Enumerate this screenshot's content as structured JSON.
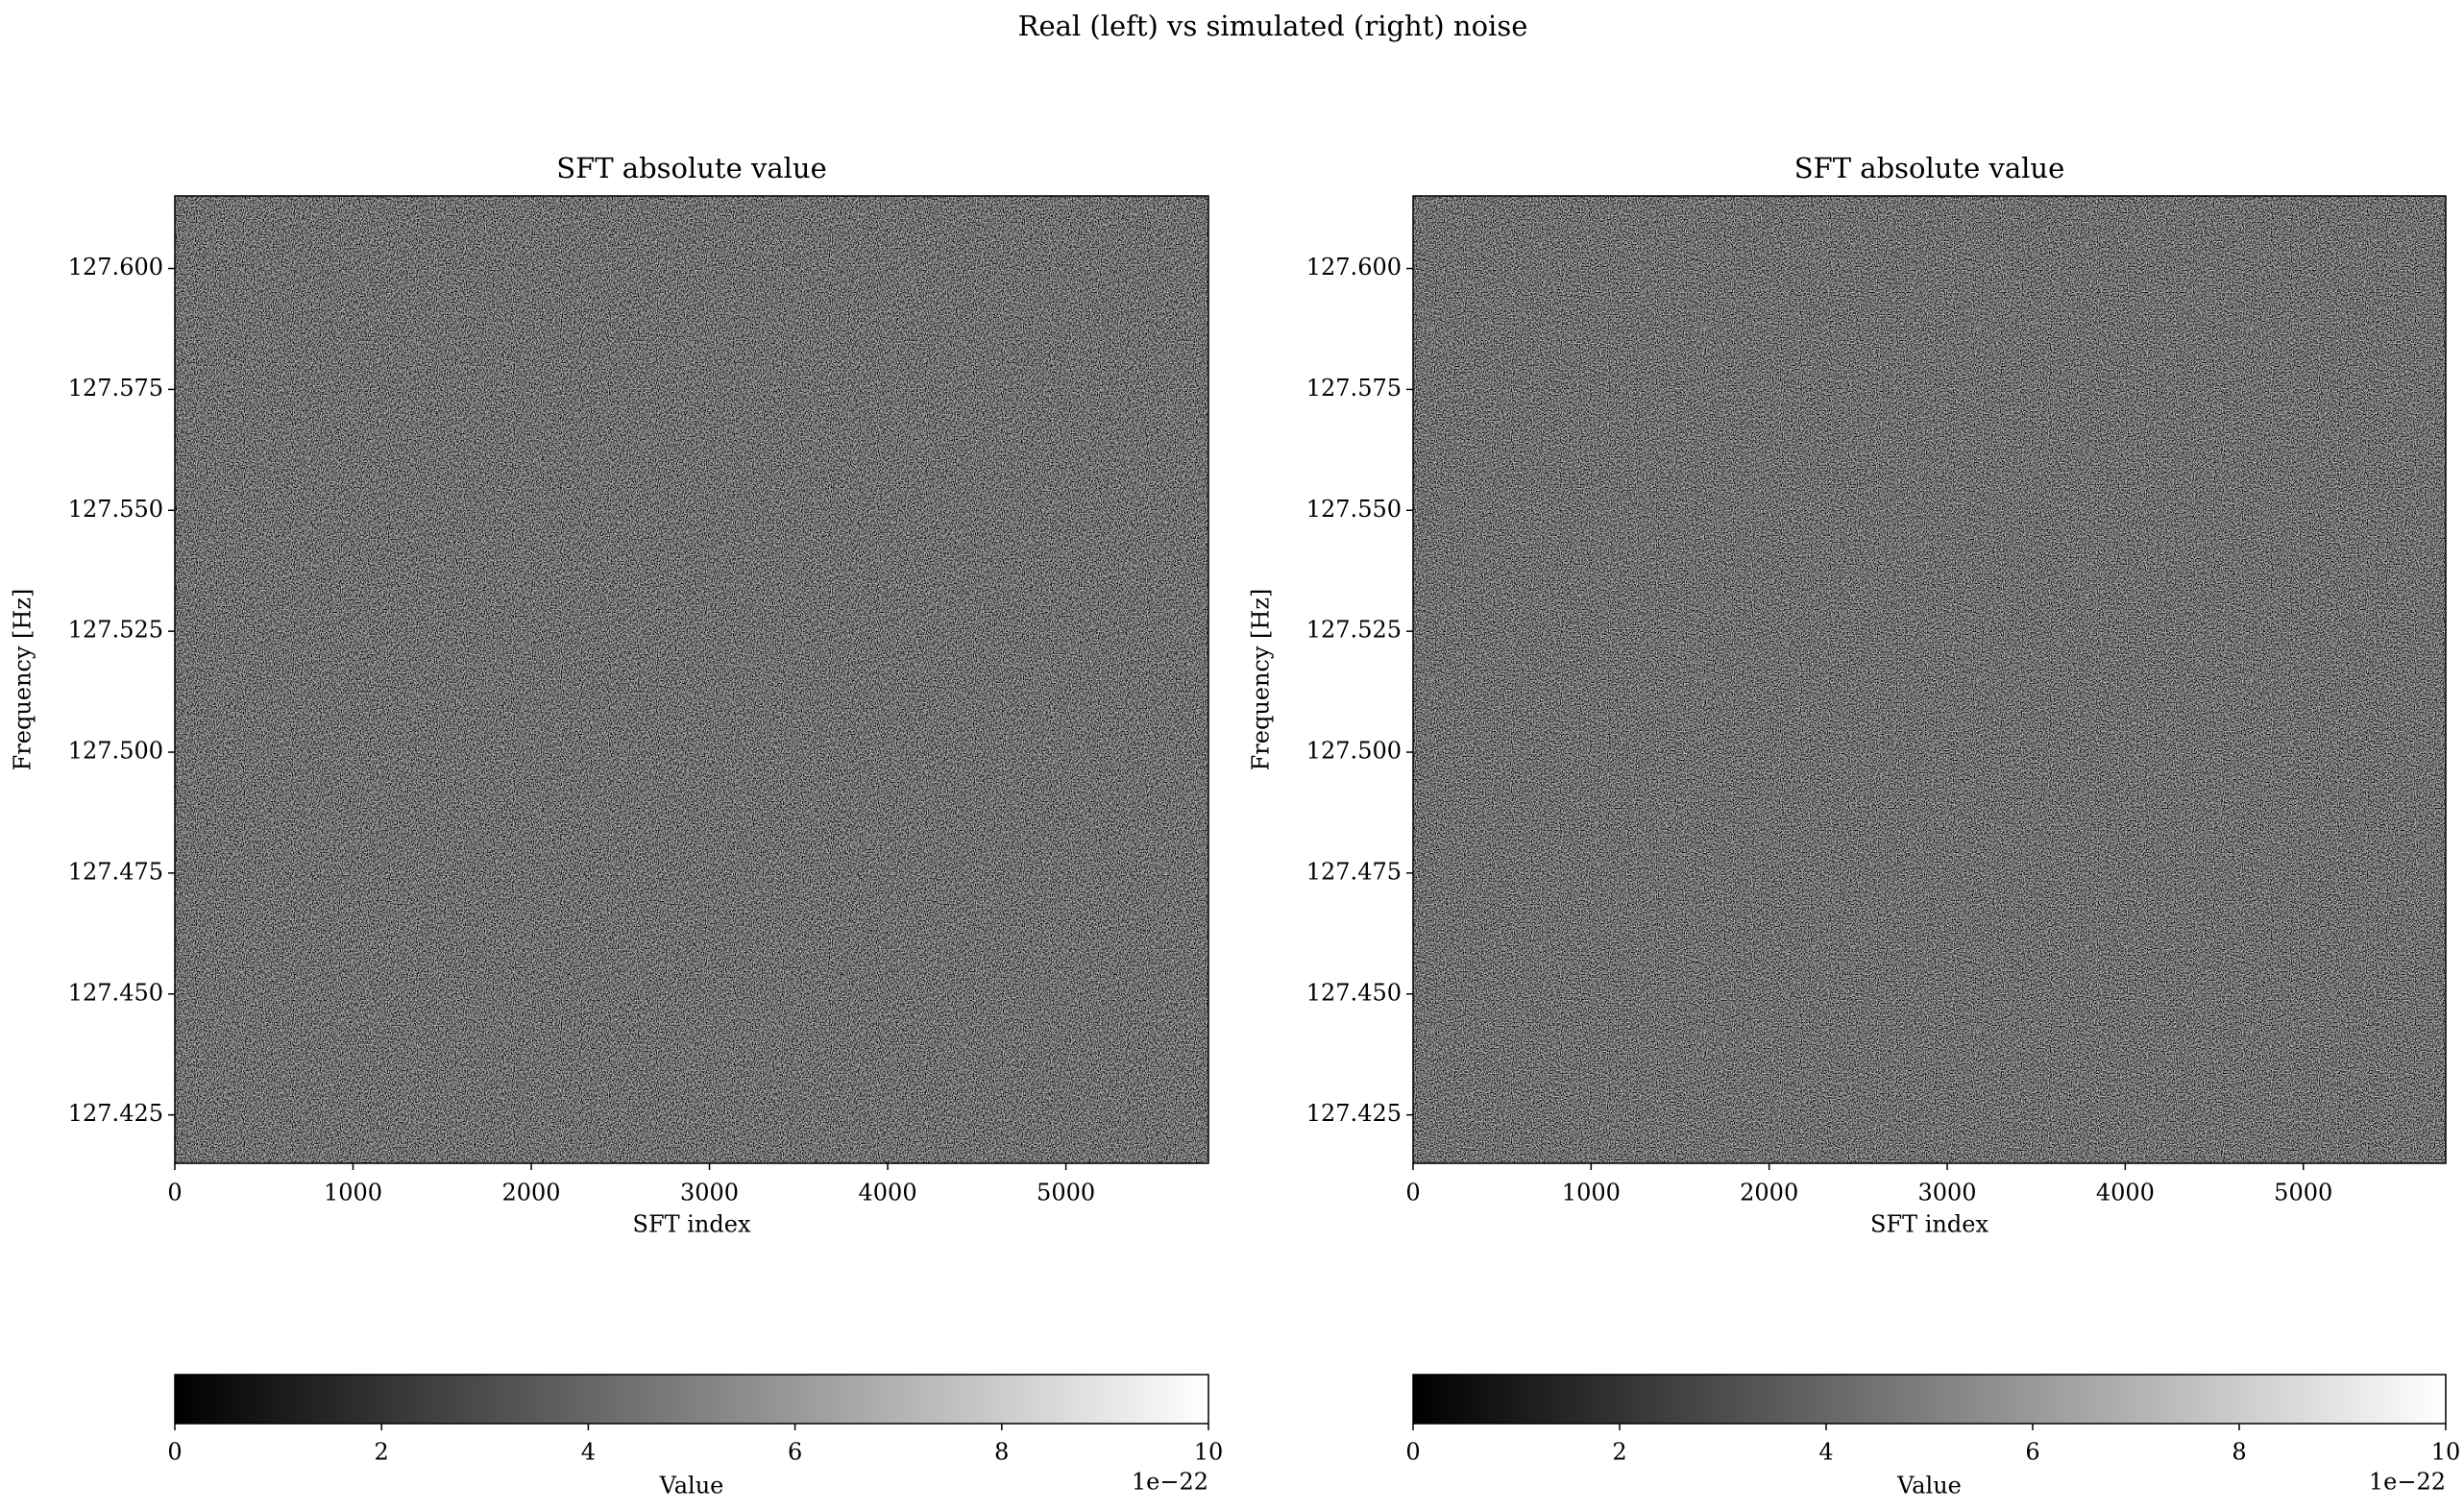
{
  "title": "Real (left) vs simulated (right) noise",
  "chart_data": [
    {
      "type": "heatmap",
      "title": "SFT absolute value",
      "xlabel": "SFT index",
      "ylabel": "Frequency [Hz]",
      "colormap": "gray",
      "xlim": [
        0,
        5800
      ],
      "xticks": [
        0,
        1000,
        2000,
        3000,
        4000,
        5000
      ],
      "ylim": [
        127.415,
        127.615
      ],
      "yticks": [
        127.425,
        {
          "value": 127.45,
          "label": "127.450"
        },
        127.475,
        {
          "value": 127.5,
          "label": "127.500"
        },
        127.525,
        {
          "value": 127.55,
          "label": "127.550"
        },
        127.575,
        {
          "value": 127.6,
          "label": "127.600"
        }
      ],
      "colorbar": {
        "label": "Value",
        "lim": [
          0,
          1e-21
        ],
        "offset_label": "1e−22",
        "ticks": [
          0,
          {
            "value": 2e-22,
            "label": "2"
          },
          {
            "value": 4e-22,
            "label": "4"
          },
          {
            "value": 6e-22,
            "label": "6"
          },
          {
            "value": 8e-22,
            "label": "8"
          },
          {
            "value": 1e-21,
            "label": "10"
          }
        ]
      }
    },
    {
      "type": "heatmap",
      "title": "SFT absolute value",
      "xlabel": "SFT index",
      "ylabel": "Frequency [Hz]",
      "colormap": "gray",
      "xlim": [
        0,
        5800
      ],
      "xticks": [
        0,
        1000,
        2000,
        3000,
        4000,
        5000
      ],
      "ylim": [
        127.415,
        127.615
      ],
      "yticks": [
        127.425,
        {
          "value": 127.45,
          "label": "127.450"
        },
        127.475,
        {
          "value": 127.5,
          "label": "127.500"
        },
        127.525,
        {
          "value": 127.55,
          "label": "127.550"
        },
        127.575,
        {
          "value": 127.6,
          "label": "127.600"
        }
      ],
      "colorbar": {
        "label": "Value",
        "lim": [
          0,
          1e-21
        ],
        "offset_label": "1e−22",
        "ticks": [
          0,
          {
            "value": 2e-22,
            "label": "2"
          },
          {
            "value": 4e-22,
            "label": "4"
          },
          {
            "value": 6e-22,
            "label": "6"
          },
          {
            "value": 8e-22,
            "label": "8"
          },
          {
            "value": 1e-21,
            "label": "10"
          }
        ]
      }
    }
  ]
}
